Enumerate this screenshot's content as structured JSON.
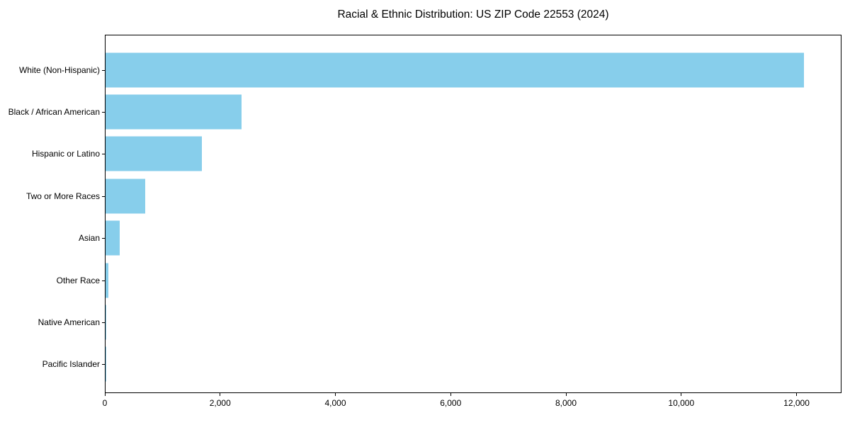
{
  "figure": {
    "background": "#ffffff",
    "axis_color": "#000000",
    "text_color": "#000000"
  },
  "chart_data": {
    "type": "bar",
    "orientation": "horizontal",
    "title": "Racial & Ethnic Distribution: US ZIP Code 22553 (2024)",
    "categories": [
      "White (Non-Hispanic)",
      "Black / African American",
      "Hispanic or Latino",
      "Two or More Races",
      "Asian",
      "Other Race",
      "Native American",
      "Pacific Islander"
    ],
    "values": [
      12140,
      2360,
      1670,
      690,
      245,
      50,
      15,
      5
    ],
    "bar_color": "#87CEEB",
    "xlabel": "",
    "ylabel": "",
    "xlim": [
      0,
      12780
    ],
    "x_ticks": [
      0,
      2000,
      4000,
      6000,
      8000,
      10000,
      12000
    ],
    "x_tick_labels": [
      "0",
      "2,000",
      "4,000",
      "6,000",
      "8,000",
      "10,000",
      "12,000"
    ],
    "grid": false,
    "legend": null
  }
}
